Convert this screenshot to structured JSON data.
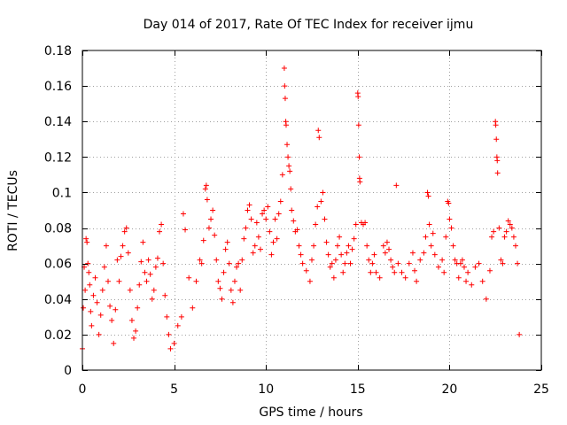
{
  "chart_data": {
    "type": "scatter",
    "title": "Day 014 of 2017, Rate Of TEC Index for receiver ijmu",
    "xlabel": "GPS time / hours",
    "ylabel": "ROTI / TECUs",
    "xlim": [
      0,
      25
    ],
    "ylim": [
      0,
      0.18
    ],
    "xticks": [
      0,
      5,
      10,
      15,
      20,
      25
    ],
    "xtick_labels": [
      "0",
      "5",
      "10",
      "15",
      "20",
      "25"
    ],
    "yticks": [
      0,
      0.02,
      0.04,
      0.06,
      0.08,
      0.1,
      0.12,
      0.14,
      0.16,
      0.18
    ],
    "ytick_labels": [
      "0",
      "0.02",
      "0.04",
      "0.06",
      "0.08",
      "0.1",
      "0.12",
      "0.14",
      "0.16",
      "0.18"
    ],
    "grid": true,
    "marker": "+",
    "color": "#ff0000",
    "series": [
      {
        "name": "ROTI",
        "points": [
          [
            0.0,
            0.012
          ],
          [
            0.05,
            0.035
          ],
          [
            0.1,
            0.058
          ],
          [
            0.15,
            0.045
          ],
          [
            0.2,
            0.074
          ],
          [
            0.25,
            0.072
          ],
          [
            0.3,
            0.06
          ],
          [
            0.35,
            0.055
          ],
          [
            0.4,
            0.048
          ],
          [
            0.45,
            0.033
          ],
          [
            0.5,
            0.025
          ],
          [
            0.6,
            0.042
          ],
          [
            0.7,
            0.052
          ],
          [
            0.8,
            0.038
          ],
          [
            0.9,
            0.02
          ],
          [
            1.0,
            0.031
          ],
          [
            1.1,
            0.045
          ],
          [
            1.2,
            0.058
          ],
          [
            1.3,
            0.07
          ],
          [
            1.4,
            0.05
          ],
          [
            1.5,
            0.036
          ],
          [
            1.6,
            0.028
          ],
          [
            1.7,
            0.015
          ],
          [
            1.8,
            0.034
          ],
          [
            1.9,
            0.062
          ],
          [
            2.0,
            0.05
          ],
          [
            2.1,
            0.064
          ],
          [
            2.2,
            0.07
          ],
          [
            2.3,
            0.078
          ],
          [
            2.4,
            0.08
          ],
          [
            2.5,
            0.066
          ],
          [
            2.6,
            0.045
          ],
          [
            2.7,
            0.028
          ],
          [
            2.8,
            0.018
          ],
          [
            2.9,
            0.022
          ],
          [
            3.0,
            0.035
          ],
          [
            3.1,
            0.048
          ],
          [
            3.2,
            0.061
          ],
          [
            3.3,
            0.072
          ],
          [
            3.4,
            0.055
          ],
          [
            3.5,
            0.05
          ],
          [
            3.6,
            0.062
          ],
          [
            3.7,
            0.054
          ],
          [
            3.8,
            0.04
          ],
          [
            3.9,
            0.045
          ],
          [
            4.0,
            0.058
          ],
          [
            4.1,
            0.063
          ],
          [
            4.2,
            0.078
          ],
          [
            4.3,
            0.082
          ],
          [
            4.4,
            0.06
          ],
          [
            4.5,
            0.042
          ],
          [
            4.6,
            0.03
          ],
          [
            4.7,
            0.02
          ],
          [
            4.8,
            0.012
          ],
          [
            5.0,
            0.015
          ],
          [
            5.2,
            0.025
          ],
          [
            5.4,
            0.03
          ],
          [
            5.5,
            0.088
          ],
          [
            5.6,
            0.079
          ],
          [
            5.8,
            0.052
          ],
          [
            6.0,
            0.035
          ],
          [
            6.2,
            0.05
          ],
          [
            6.4,
            0.062
          ],
          [
            6.5,
            0.06
          ],
          [
            6.6,
            0.073
          ],
          [
            6.7,
            0.102
          ],
          [
            6.75,
            0.104
          ],
          [
            6.8,
            0.096
          ],
          [
            6.9,
            0.08
          ],
          [
            7.0,
            0.085
          ],
          [
            7.1,
            0.09
          ],
          [
            7.2,
            0.076
          ],
          [
            7.3,
            0.062
          ],
          [
            7.4,
            0.05
          ],
          [
            7.5,
            0.046
          ],
          [
            7.6,
            0.04
          ],
          [
            7.7,
            0.055
          ],
          [
            7.8,
            0.068
          ],
          [
            7.9,
            0.072
          ],
          [
            8.0,
            0.06
          ],
          [
            8.1,
            0.045
          ],
          [
            8.2,
            0.038
          ],
          [
            8.3,
            0.05
          ],
          [
            8.4,
            0.058
          ],
          [
            8.5,
            0.06
          ],
          [
            8.6,
            0.045
          ],
          [
            8.7,
            0.062
          ],
          [
            8.8,
            0.074
          ],
          [
            8.9,
            0.08
          ],
          [
            9.0,
            0.09
          ],
          [
            9.1,
            0.093
          ],
          [
            9.2,
            0.085
          ],
          [
            9.3,
            0.066
          ],
          [
            9.4,
            0.07
          ],
          [
            9.5,
            0.083
          ],
          [
            9.6,
            0.075
          ],
          [
            9.7,
            0.068
          ],
          [
            9.8,
            0.088
          ],
          [
            9.9,
            0.09
          ],
          [
            10.0,
            0.085
          ],
          [
            10.1,
            0.092
          ],
          [
            10.2,
            0.078
          ],
          [
            10.3,
            0.065
          ],
          [
            10.4,
            0.072
          ],
          [
            10.5,
            0.085
          ],
          [
            10.6,
            0.074
          ],
          [
            10.7,
            0.088
          ],
          [
            10.8,
            0.095
          ],
          [
            10.9,
            0.11
          ],
          [
            11.0,
            0.17
          ],
          [
            11.02,
            0.16
          ],
          [
            11.05,
            0.153
          ],
          [
            11.08,
            0.14
          ],
          [
            11.1,
            0.138
          ],
          [
            11.15,
            0.127
          ],
          [
            11.2,
            0.12
          ],
          [
            11.25,
            0.115
          ],
          [
            11.3,
            0.112
          ],
          [
            11.35,
            0.102
          ],
          [
            11.4,
            0.09
          ],
          [
            11.5,
            0.084
          ],
          [
            11.6,
            0.078
          ],
          [
            11.7,
            0.079
          ],
          [
            11.8,
            0.07
          ],
          [
            11.9,
            0.065
          ],
          [
            12.0,
            0.06
          ],
          [
            12.2,
            0.056
          ],
          [
            12.4,
            0.05
          ],
          [
            12.5,
            0.062
          ],
          [
            12.6,
            0.07
          ],
          [
            12.7,
            0.082
          ],
          [
            12.8,
            0.092
          ],
          [
            12.85,
            0.135
          ],
          [
            12.9,
            0.131
          ],
          [
            13.0,
            0.095
          ],
          [
            13.1,
            0.1
          ],
          [
            13.2,
            0.085
          ],
          [
            13.3,
            0.072
          ],
          [
            13.4,
            0.065
          ],
          [
            13.5,
            0.058
          ],
          [
            13.6,
            0.06
          ],
          [
            13.7,
            0.052
          ],
          [
            13.8,
            0.062
          ],
          [
            13.9,
            0.07
          ],
          [
            14.0,
            0.075
          ],
          [
            14.1,
            0.065
          ],
          [
            14.2,
            0.055
          ],
          [
            14.3,
            0.06
          ],
          [
            14.4,
            0.066
          ],
          [
            14.5,
            0.07
          ],
          [
            14.6,
            0.06
          ],
          [
            14.7,
            0.068
          ],
          [
            14.8,
            0.074
          ],
          [
            14.9,
            0.082
          ],
          [
            15.0,
            0.156
          ],
          [
            15.02,
            0.154
          ],
          [
            15.05,
            0.138
          ],
          [
            15.08,
            0.12
          ],
          [
            15.1,
            0.108
          ],
          [
            15.12,
            0.106
          ],
          [
            15.2,
            0.083
          ],
          [
            15.3,
            0.082
          ],
          [
            15.4,
            0.083
          ],
          [
            15.5,
            0.07
          ],
          [
            15.6,
            0.062
          ],
          [
            15.7,
            0.055
          ],
          [
            15.8,
            0.06
          ],
          [
            15.9,
            0.065
          ],
          [
            16.0,
            0.055
          ],
          [
            16.2,
            0.052
          ],
          [
            16.4,
            0.07
          ],
          [
            16.5,
            0.066
          ],
          [
            16.6,
            0.072
          ],
          [
            16.7,
            0.068
          ],
          [
            16.8,
            0.062
          ],
          [
            16.9,
            0.058
          ],
          [
            17.0,
            0.055
          ],
          [
            17.1,
            0.104
          ],
          [
            17.2,
            0.06
          ],
          [
            17.4,
            0.055
          ],
          [
            17.6,
            0.052
          ],
          [
            17.8,
            0.06
          ],
          [
            18.0,
            0.066
          ],
          [
            18.1,
            0.056
          ],
          [
            18.2,
            0.05
          ],
          [
            18.4,
            0.062
          ],
          [
            18.6,
            0.066
          ],
          [
            18.7,
            0.075
          ],
          [
            18.8,
            0.1
          ],
          [
            18.85,
            0.098
          ],
          [
            18.9,
            0.082
          ],
          [
            19.0,
            0.07
          ],
          [
            19.1,
            0.077
          ],
          [
            19.2,
            0.065
          ],
          [
            19.4,
            0.058
          ],
          [
            19.6,
            0.062
          ],
          [
            19.7,
            0.055
          ],
          [
            19.8,
            0.075
          ],
          [
            19.9,
            0.095
          ],
          [
            19.95,
            0.094
          ],
          [
            20.0,
            0.085
          ],
          [
            20.1,
            0.08
          ],
          [
            20.2,
            0.07
          ],
          [
            20.3,
            0.062
          ],
          [
            20.4,
            0.06
          ],
          [
            20.5,
            0.052
          ],
          [
            20.6,
            0.06
          ],
          [
            20.7,
            0.062
          ],
          [
            20.8,
            0.058
          ],
          [
            20.9,
            0.05
          ],
          [
            21.0,
            0.055
          ],
          [
            21.2,
            0.048
          ],
          [
            21.4,
            0.058
          ],
          [
            21.6,
            0.06
          ],
          [
            21.8,
            0.05
          ],
          [
            22.0,
            0.04
          ],
          [
            22.2,
            0.056
          ],
          [
            22.3,
            0.075
          ],
          [
            22.4,
            0.078
          ],
          [
            22.5,
            0.14
          ],
          [
            22.52,
            0.138
          ],
          [
            22.55,
            0.13
          ],
          [
            22.58,
            0.12
          ],
          [
            22.6,
            0.118
          ],
          [
            22.62,
            0.111
          ],
          [
            22.7,
            0.08
          ],
          [
            22.8,
            0.062
          ],
          [
            22.9,
            0.06
          ],
          [
            23.0,
            0.075
          ],
          [
            23.1,
            0.078
          ],
          [
            23.2,
            0.084
          ],
          [
            23.3,
            0.082
          ],
          [
            23.4,
            0.08
          ],
          [
            23.5,
            0.075
          ],
          [
            23.6,
            0.07
          ],
          [
            23.7,
            0.06
          ],
          [
            23.8,
            0.02
          ]
        ]
      }
    ]
  }
}
